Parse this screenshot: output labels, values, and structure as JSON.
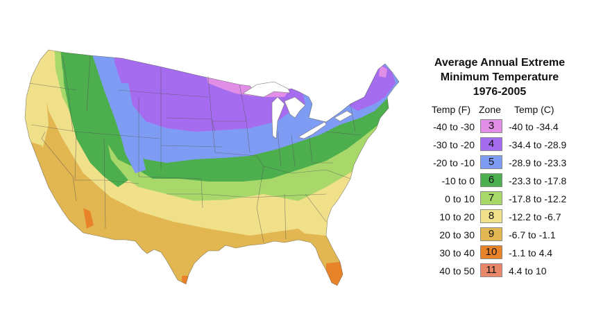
{
  "map": {
    "subject": "USDA Plant Hardiness Zone Map - contiguous United States",
    "colors": {
      "zone3": "#e08ee6",
      "zone4": "#a66cf0",
      "zone5": "#7f9cf5",
      "zone6": "#4cae4c",
      "zone7": "#a8d86a",
      "zone8": "#f0e08a",
      "zone9": "#e2b650",
      "zone10": "#e8832a",
      "zone11": "#e8876a",
      "water": "#ffffff",
      "border": "#555555"
    }
  },
  "legend": {
    "title_line1": "Average Annual Extreme",
    "title_line2": "Minimum Temperature",
    "title_line3": "1976-2005",
    "header_temp_f": "Temp (F)",
    "header_zone": "Zone",
    "header_temp_c": "Temp (C)",
    "rows": [
      {
        "temp_f": "-40 to -30",
        "zone": "3",
        "temp_c": "-40 to -34.4",
        "color": "#e08ee6"
      },
      {
        "temp_f": "-30 to -20",
        "zone": "4",
        "temp_c": "-34.4 to -28.9",
        "color": "#a66cf0"
      },
      {
        "temp_f": "-20 to -10",
        "zone": "5",
        "temp_c": "-28.9 to -23.3",
        "color": "#7f9cf5"
      },
      {
        "temp_f": "-10 to 0",
        "zone": "6",
        "temp_c": "-23.3 to -17.8",
        "color": "#4cae4c"
      },
      {
        "temp_f": "0 to 10",
        "zone": "7",
        "temp_c": "-17.8 to -12.2",
        "color": "#a8d86a"
      },
      {
        "temp_f": "10 to 20",
        "zone": "8",
        "temp_c": "-12.2 to -6.7",
        "color": "#f0e08a"
      },
      {
        "temp_f": "20 to 30",
        "zone": "9",
        "temp_c": "-6.7 to -1.1",
        "color": "#e2b650"
      },
      {
        "temp_f": "30 to 40",
        "zone": "10",
        "temp_c": "-1.1 to 4.4",
        "color": "#e8832a"
      },
      {
        "temp_f": "40 to 50",
        "zone": "11",
        "temp_c": "4.4 to 10",
        "color": "#e8876a"
      }
    ]
  }
}
